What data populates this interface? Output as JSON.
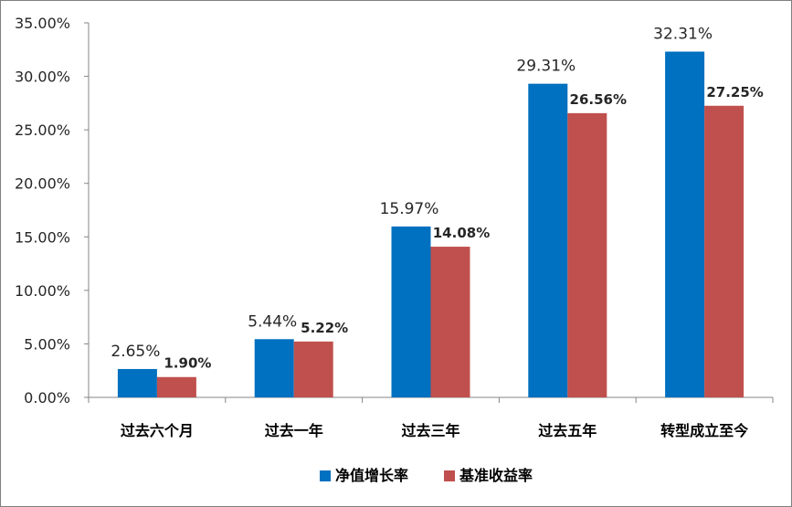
{
  "chart_data": {
    "type": "bar",
    "title": "",
    "xlabel": "",
    "ylabel": "",
    "ylim": [
      0,
      35
    ],
    "y_ticks": [
      "0.00%",
      "5.00%",
      "10.00%",
      "15.00%",
      "20.00%",
      "25.00%",
      "30.00%",
      "35.00%"
    ],
    "categories": [
      "过去六个月",
      "过去一年",
      "过去三年",
      "过去五年",
      "转型成立至今"
    ],
    "series": [
      {
        "name": "净值增长率",
        "color": "#0070C0",
        "values": [
          2.65,
          5.44,
          15.97,
          29.31,
          32.31
        ],
        "labels": [
          "2.65%",
          "5.44%",
          "15.97%",
          "29.31%",
          "32.31%"
        ]
      },
      {
        "name": "基准收益率",
        "color": "#C0504D",
        "values": [
          1.9,
          5.22,
          14.08,
          26.56,
          27.25
        ],
        "labels": [
          "1.90%",
          "5.22%",
          "14.08%",
          "26.56%",
          "27.25%"
        ]
      }
    ],
    "grid": false,
    "legend_position": "bottom"
  }
}
